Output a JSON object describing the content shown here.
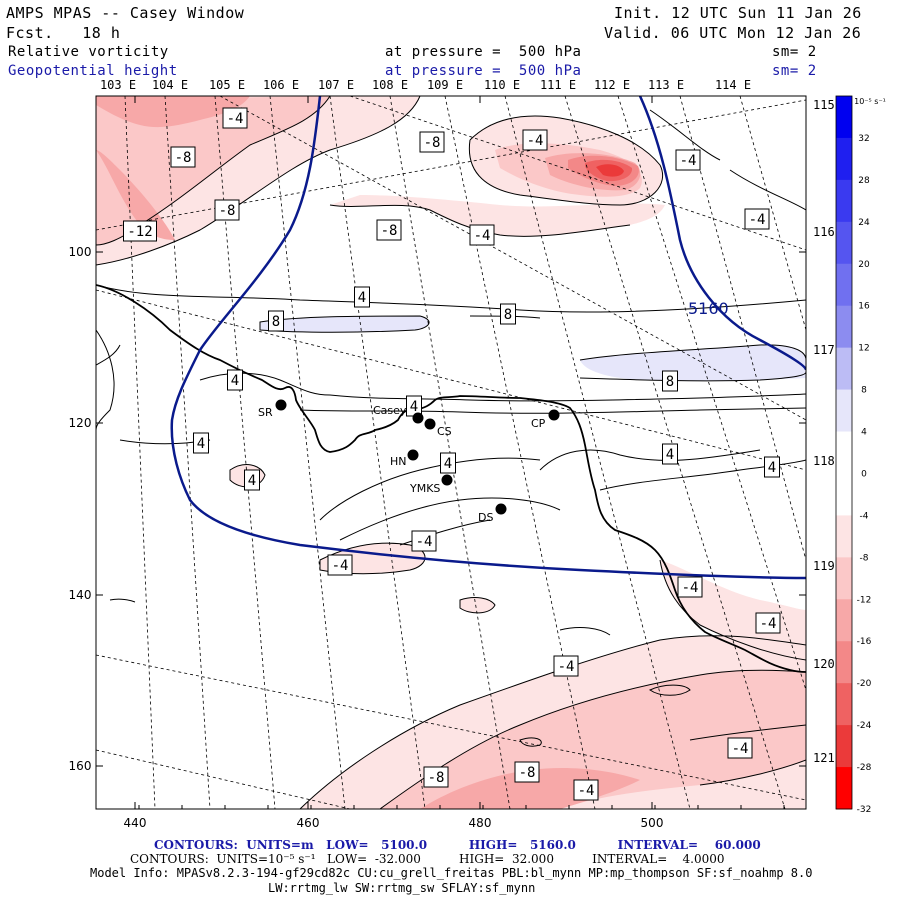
{
  "header": {
    "title": "AMPS MPAS -- Casey Window",
    "forecast": "Fcst.   18 h",
    "init": "Init. 12 UTC Sun 11 Jan 26",
    "valid": "Valid. 06 UTC Mon 12 Jan 26",
    "field1": {
      "name": "Relative vorticity",
      "level": "at pressure =  500 hPa",
      "sm": "sm= 2"
    },
    "field2": {
      "name": "Geopotential height",
      "level": "at pressure =  500 hPa",
      "sm": "sm= 2"
    }
  },
  "map": {
    "top_lon_labels": [
      "103 E",
      "104 E",
      "105 E",
      "106 E",
      "107 E",
      "108 E",
      "109 E",
      "110 E",
      "111 E",
      "112 E",
      "113 E",
      "114 E"
    ],
    "right_lon_labels": [
      "115 E",
      "116 E",
      "117 E",
      "118 E",
      "119 E",
      "120 E",
      "121 E"
    ],
    "y_ticks": [
      "100",
      "120",
      "140",
      "160"
    ],
    "x_ticks": [
      "440",
      "460",
      "480",
      "500"
    ],
    "stations": [
      {
        "label": "SR"
      },
      {
        "label": "Casey"
      },
      {
        "label": "CS"
      },
      {
        "label": "CP"
      },
      {
        "label": "HN"
      },
      {
        "label": "YMKS"
      },
      {
        "label": "DS"
      }
    ],
    "contour_labels": [
      "-4",
      "-8",
      "-4",
      "-8",
      "-8",
      "-12",
      "-8",
      "-4",
      "-4",
      "-4",
      "4",
      "8",
      "8",
      "8",
      "4",
      "4",
      "4",
      "4",
      "4",
      "4",
      "4",
      "-4",
      "-4",
      "-4",
      "-4",
      "-4",
      "-4",
      "-8",
      "-8",
      "-4"
    ],
    "height_contour_label": "5160"
  },
  "colorbar": {
    "unit": "10⁻⁵ s⁻¹",
    "ticks": [
      "32",
      "28",
      "24",
      "20",
      "16",
      "12",
      "8",
      "4",
      "0",
      "-4",
      "-8",
      "-12",
      "-16",
      "-20",
      "-24",
      "-28",
      "-32"
    ],
    "colors": [
      "#0000f0",
      "#1f1ff0",
      "#3a3af0",
      "#5555f0",
      "#7070f0",
      "#8c8cf0",
      "#bcbcf5",
      "#e6e6fa",
      "#ffffff",
      "#ffffff",
      "#fde4e4",
      "#fbc8c8",
      "#f7a8a8",
      "#f38888",
      "#ef6262",
      "#eb3a3a",
      "#ff0000"
    ]
  },
  "footer": {
    "line1": "CONTOURS:  UNITS=m   LOW=   5100.0          HIGH=   5160.0          INTERVAL=    60.000",
    "line2": "CONTOURS:  UNITS=10⁻⁵ s⁻¹   LOW=  -32.000          HIGH=  32.000          INTERVAL=    4.0000",
    "line3": "Model Info: MPASv8.2.3-194-gf29cd82c CU:cu_grell_freitas PBL:bl_mynn MP:mp_thompson SF:sf_noahmp 8.0",
    "line4": "LW:rrtmg_lw SW:rrtmg_sw SFLAY:sf_mynn"
  }
}
